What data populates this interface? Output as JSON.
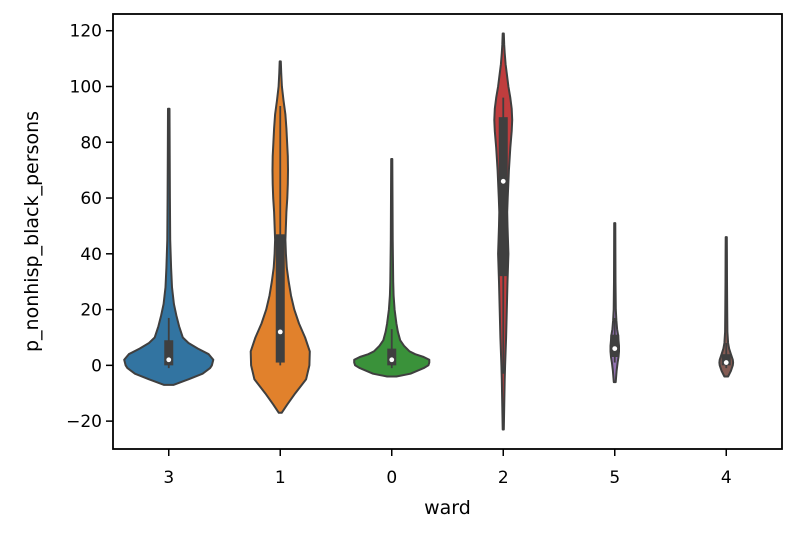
{
  "chart_data": {
    "type": "violin",
    "xlabel": "ward",
    "ylabel": "p_nonhisp_black_persons",
    "ylim": [
      -30,
      126
    ],
    "yticks": [
      -20,
      0,
      20,
      40,
      60,
      80,
      100,
      120
    ],
    "grid": false,
    "categories": [
      "3",
      "1",
      "0",
      "2",
      "5",
      "4"
    ],
    "violins": [
      {
        "category": "3",
        "color": "#3274a1",
        "min": -7,
        "max": 92,
        "q1": 0,
        "median": 2,
        "q3": 9,
        "whisker_low": -1,
        "whisker_high": 17,
        "profile": [
          [
            -7,
            0.1
          ],
          [
            -5,
            0.42
          ],
          [
            -3,
            0.72
          ],
          [
            -1,
            0.88
          ],
          [
            0,
            0.92
          ],
          [
            2,
            0.95
          ],
          [
            4,
            0.85
          ],
          [
            6,
            0.62
          ],
          [
            8,
            0.42
          ],
          [
            10,
            0.3
          ],
          [
            14,
            0.22
          ],
          [
            18,
            0.16
          ],
          [
            22,
            0.11
          ],
          [
            28,
            0.07
          ],
          [
            35,
            0.05
          ],
          [
            45,
            0.03
          ],
          [
            60,
            0.025
          ],
          [
            75,
            0.02
          ],
          [
            92,
            0.015
          ]
        ]
      },
      {
        "category": "1",
        "color": "#e1812c",
        "min": -17,
        "max": 109,
        "q1": 1,
        "median": 12,
        "q3": 47,
        "whisker_low": 0,
        "whisker_high": 93,
        "profile": [
          [
            -17,
            0.03
          ],
          [
            -14,
            0.15
          ],
          [
            -10,
            0.32
          ],
          [
            -5,
            0.55
          ],
          [
            0,
            0.62
          ],
          [
            5,
            0.63
          ],
          [
            10,
            0.53
          ],
          [
            15,
            0.4
          ],
          [
            20,
            0.3
          ],
          [
            25,
            0.23
          ],
          [
            30,
            0.18
          ],
          [
            35,
            0.14
          ],
          [
            40,
            0.12
          ],
          [
            45,
            0.11
          ],
          [
            50,
            0.12
          ],
          [
            55,
            0.13
          ],
          [
            60,
            0.15
          ],
          [
            65,
            0.16
          ],
          [
            70,
            0.165
          ],
          [
            75,
            0.16
          ],
          [
            80,
            0.145
          ],
          [
            85,
            0.13
          ],
          [
            90,
            0.11
          ],
          [
            95,
            0.07
          ],
          [
            100,
            0.035
          ],
          [
            105,
            0.02
          ],
          [
            109,
            0.012
          ]
        ]
      },
      {
        "category": "0",
        "color": "#3a923a",
        "min": -4,
        "max": 74,
        "q1": 0,
        "median": 2,
        "q3": 6,
        "whisker_low": -1,
        "whisker_high": 13,
        "profile": [
          [
            -4,
            0.1
          ],
          [
            -3,
            0.4
          ],
          [
            -1,
            0.68
          ],
          [
            0,
            0.78
          ],
          [
            1,
            0.8
          ],
          [
            2,
            0.8
          ],
          [
            3,
            0.68
          ],
          [
            4,
            0.5
          ],
          [
            5,
            0.38
          ],
          [
            7,
            0.26
          ],
          [
            9,
            0.18
          ],
          [
            12,
            0.13
          ],
          [
            15,
            0.1
          ],
          [
            20,
            0.06
          ],
          [
            25,
            0.04
          ],
          [
            30,
            0.03
          ],
          [
            45,
            0.02
          ],
          [
            60,
            0.016
          ],
          [
            74,
            0.012
          ]
        ]
      },
      {
        "category": "2",
        "color": "#c03d3e",
        "min": -23,
        "max": 119,
        "q1": 32,
        "median": 66,
        "q3": 89,
        "whisker_low": -3,
        "whisker_high": 96,
        "profile": [
          [
            -23,
            0.012
          ],
          [
            -15,
            0.02
          ],
          [
            -5,
            0.03
          ],
          [
            0,
            0.04
          ],
          [
            10,
            0.06
          ],
          [
            20,
            0.075
          ],
          [
            30,
            0.09
          ],
          [
            40,
            0.11
          ],
          [
            50,
            0.09
          ],
          [
            55,
            0.085
          ],
          [
            60,
            0.095
          ],
          [
            70,
            0.12
          ],
          [
            78,
            0.15
          ],
          [
            84,
            0.18
          ],
          [
            88,
            0.19
          ],
          [
            92,
            0.18
          ],
          [
            96,
            0.15
          ],
          [
            100,
            0.11
          ],
          [
            104,
            0.08
          ],
          [
            108,
            0.05
          ],
          [
            112,
            0.03
          ],
          [
            115,
            0.02
          ],
          [
            119,
            0.012
          ]
        ]
      },
      {
        "category": "5",
        "color": "#9372b2",
        "min": -6,
        "max": 51,
        "q1": 3,
        "median": 6,
        "q3": 11,
        "whisker_low": 1,
        "whisker_high": 17,
        "profile": [
          [
            -6,
            0.02
          ],
          [
            -2,
            0.04
          ],
          [
            1,
            0.06
          ],
          [
            3,
            0.08
          ],
          [
            5,
            0.09
          ],
          [
            7,
            0.09
          ],
          [
            9,
            0.08
          ],
          [
            11,
            0.07
          ],
          [
            13,
            0.05
          ],
          [
            16,
            0.035
          ],
          [
            20,
            0.022
          ],
          [
            30,
            0.016
          ],
          [
            40,
            0.014
          ],
          [
            51,
            0.012
          ]
        ]
      },
      {
        "category": "4",
        "color": "#845b53",
        "min": -4,
        "max": 46,
        "q1": 0,
        "median": 1,
        "q3": 4,
        "whisker_low": -1,
        "whisker_high": 8,
        "profile": [
          [
            -4,
            0.04
          ],
          [
            -2,
            0.1
          ],
          [
            0,
            0.14
          ],
          [
            1,
            0.145
          ],
          [
            2,
            0.14
          ],
          [
            4,
            0.1
          ],
          [
            6,
            0.06
          ],
          [
            8,
            0.04
          ],
          [
            12,
            0.025
          ],
          [
            20,
            0.02
          ],
          [
            30,
            0.016
          ],
          [
            40,
            0.013
          ],
          [
            46,
            0.012
          ]
        ]
      }
    ]
  }
}
